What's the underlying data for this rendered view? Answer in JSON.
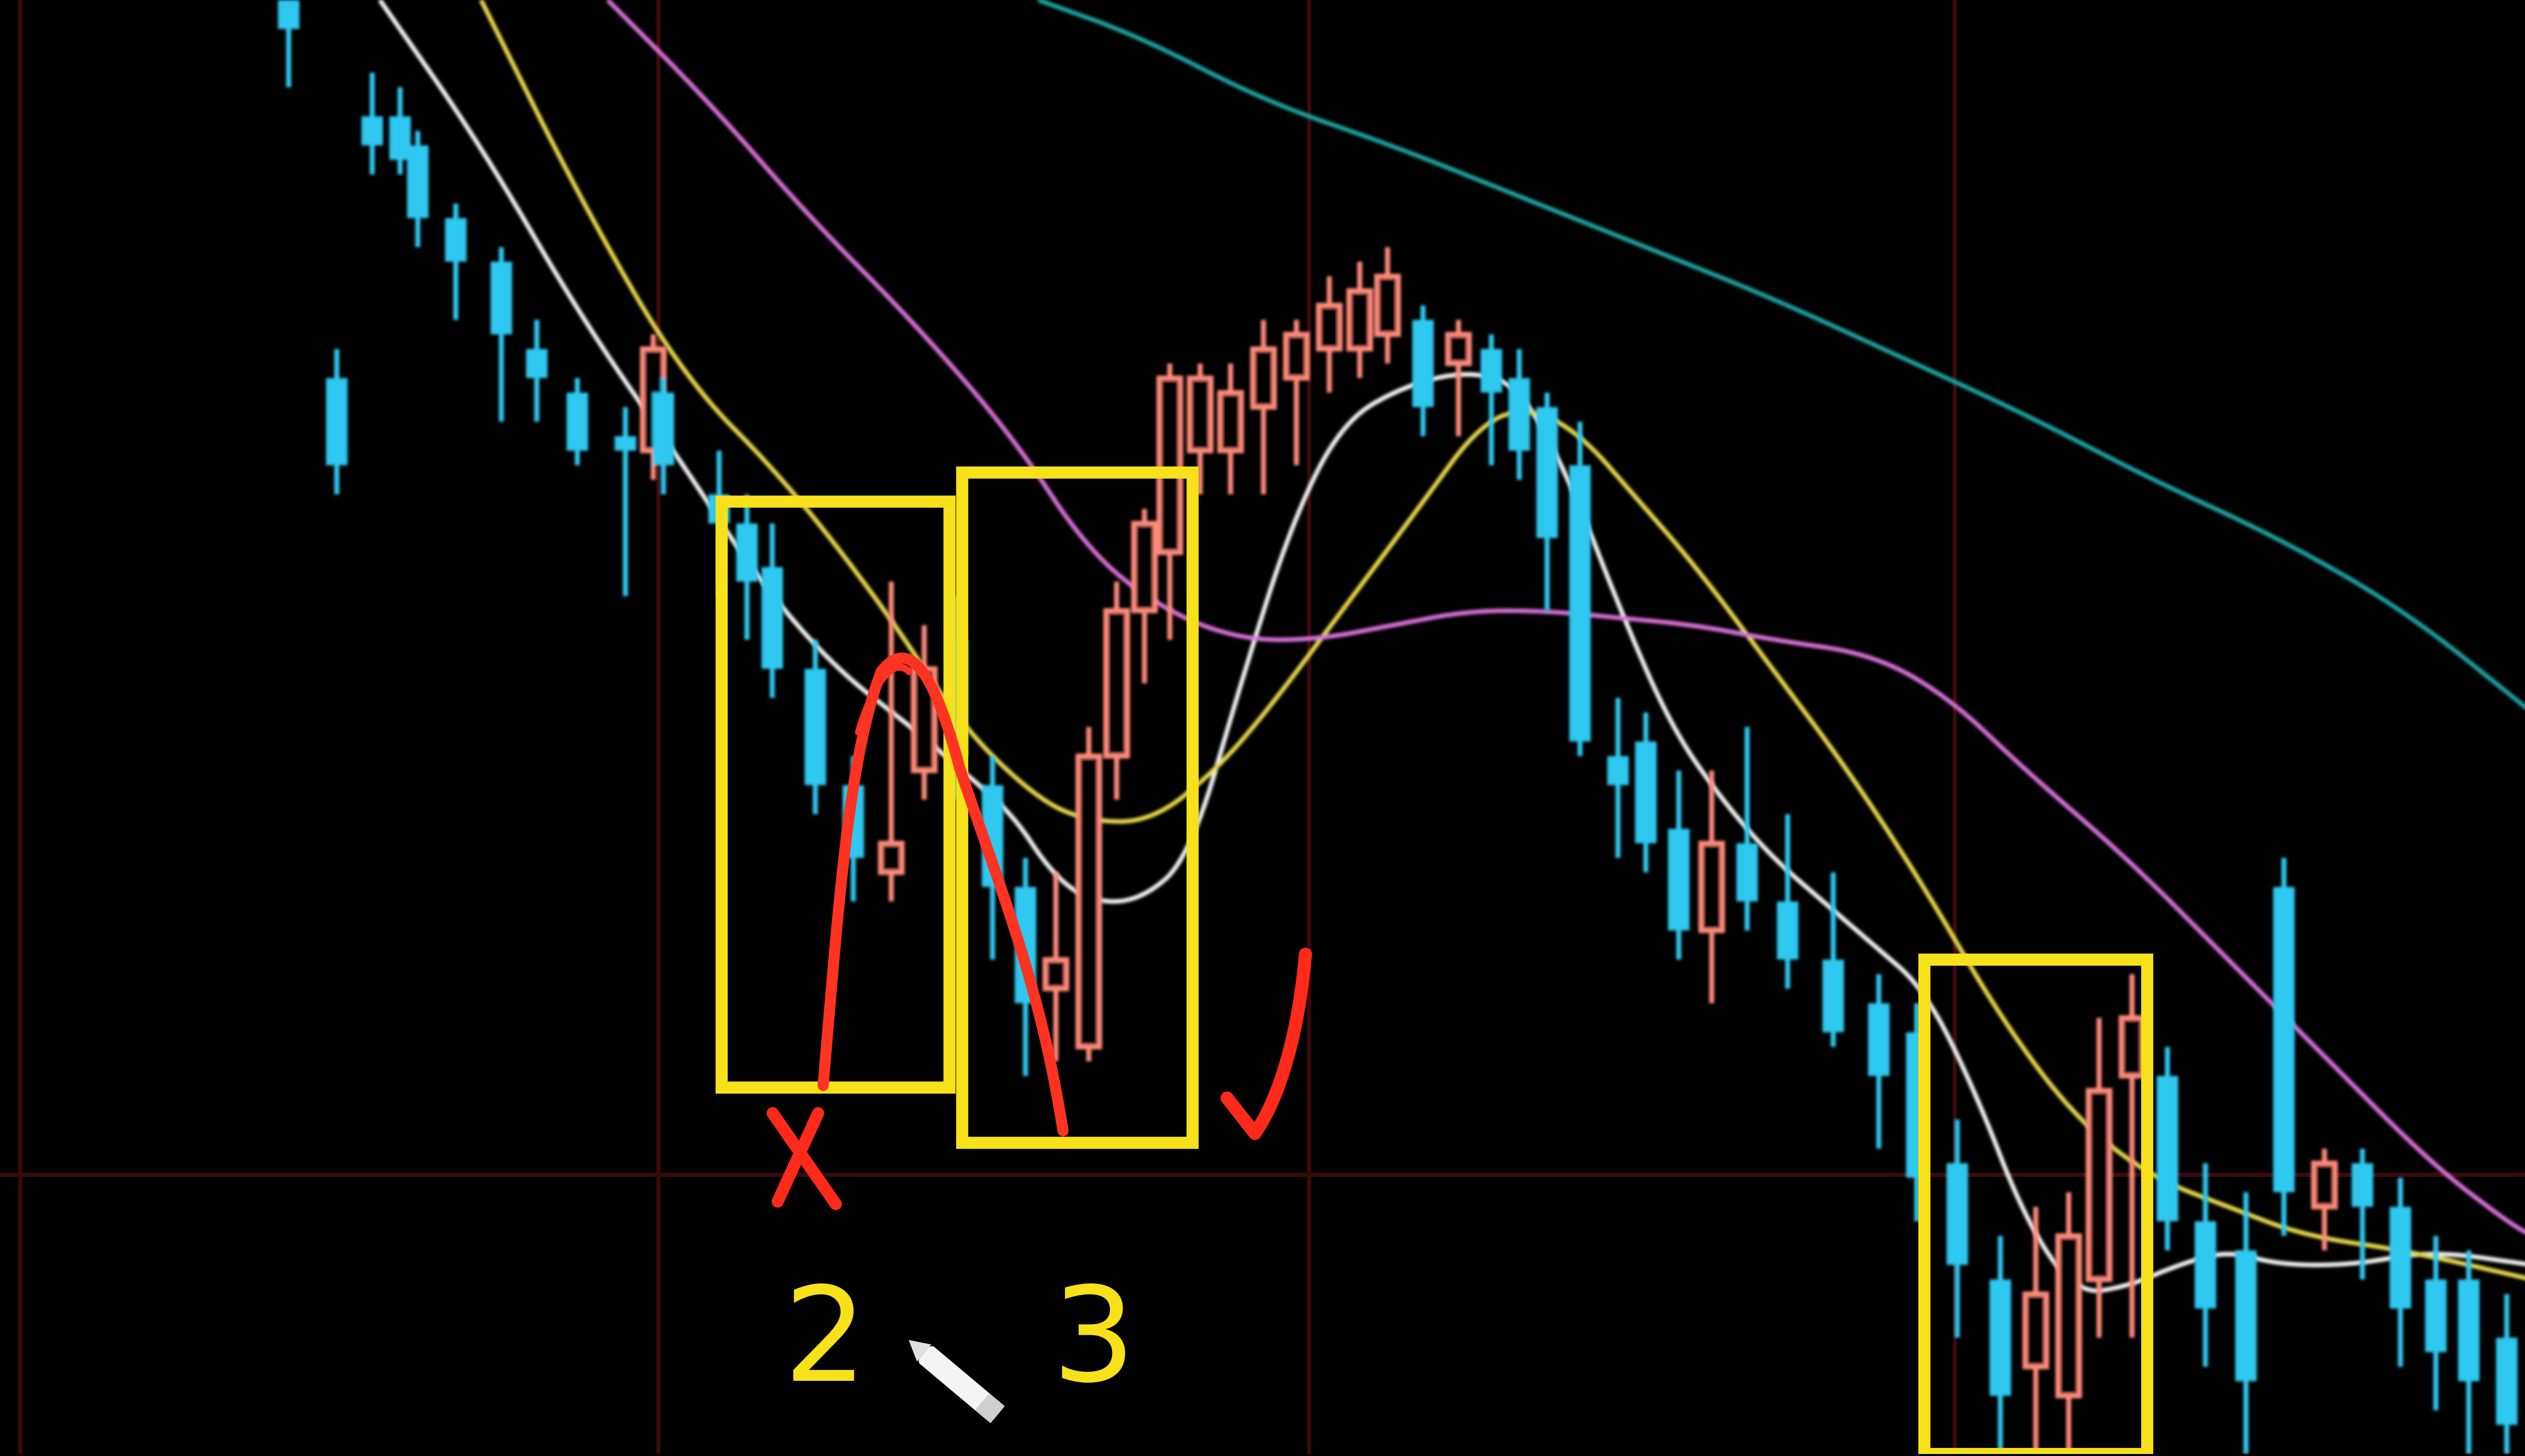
{
  "chart_data": {
    "type": "candlestick",
    "background": "#000000",
    "price_scale": {
      "top": 1.0,
      "bottom": 0.0
    },
    "grid": {
      "color": "#3a0a0a",
      "vertical_x": [
        0.008,
        0.26,
        0.517,
        0.772
      ],
      "horizontal_y": [
        0.808
      ]
    },
    "colors": {
      "up": "#ff8a7a",
      "down": "#2ec8f0",
      "box": "#f6e11a",
      "annotation": "#ff2a1a",
      "cursor": "#ffffff"
    },
    "moving_averages": [
      {
        "color": "#f2f2f2",
        "points": [
          [
            0.15,
            0.0
          ],
          [
            0.19,
            0.1
          ],
          [
            0.23,
            0.22
          ],
          [
            0.27,
            0.32
          ],
          [
            0.3,
            0.4
          ],
          [
            0.33,
            0.46
          ],
          [
            0.36,
            0.5
          ],
          [
            0.38,
            0.53
          ],
          [
            0.4,
            0.56
          ],
          [
            0.415,
            0.6
          ],
          [
            0.43,
            0.62
          ],
          [
            0.45,
            0.62
          ],
          [
            0.47,
            0.59
          ],
          [
            0.49,
            0.47
          ],
          [
            0.51,
            0.36
          ],
          [
            0.53,
            0.29
          ],
          [
            0.555,
            0.265
          ],
          [
            0.58,
            0.255
          ],
          [
            0.6,
            0.265
          ],
          [
            0.62,
            0.33
          ],
          [
            0.64,
            0.42
          ],
          [
            0.66,
            0.5
          ],
          [
            0.68,
            0.55
          ],
          [
            0.7,
            0.59
          ],
          [
            0.72,
            0.62
          ],
          [
            0.74,
            0.65
          ],
          [
            0.76,
            0.68
          ],
          [
            0.78,
            0.75
          ],
          [
            0.8,
            0.84
          ],
          [
            0.82,
            0.89
          ],
          [
            0.84,
            0.885
          ],
          [
            0.86,
            0.87
          ],
          [
            0.88,
            0.86
          ],
          [
            0.9,
            0.87
          ],
          [
            0.93,
            0.87
          ],
          [
            0.96,
            0.86
          ],
          [
            1.0,
            0.87
          ]
        ]
      },
      {
        "color": "#e8d84a",
        "points": [
          [
            0.19,
            0.0
          ],
          [
            0.23,
            0.14
          ],
          [
            0.27,
            0.26
          ],
          [
            0.31,
            0.33
          ],
          [
            0.35,
            0.42
          ],
          [
            0.38,
            0.5
          ],
          [
            0.41,
            0.55
          ],
          [
            0.43,
            0.565
          ],
          [
            0.455,
            0.565
          ],
          [
            0.48,
            0.53
          ],
          [
            0.5,
            0.49
          ],
          [
            0.53,
            0.42
          ],
          [
            0.56,
            0.35
          ],
          [
            0.585,
            0.29
          ],
          [
            0.605,
            0.28
          ],
          [
            0.625,
            0.3
          ],
          [
            0.645,
            0.34
          ],
          [
            0.67,
            0.39
          ],
          [
            0.7,
            0.46
          ],
          [
            0.73,
            0.53
          ],
          [
            0.76,
            0.61
          ],
          [
            0.79,
            0.7
          ],
          [
            0.82,
            0.77
          ],
          [
            0.85,
            0.81
          ],
          [
            0.88,
            0.83
          ],
          [
            0.91,
            0.85
          ],
          [
            0.95,
            0.86
          ],
          [
            1.0,
            0.88
          ]
        ]
      },
      {
        "color": "#d86fd8",
        "points": [
          [
            0.24,
            0.0
          ],
          [
            0.28,
            0.07
          ],
          [
            0.32,
            0.15
          ],
          [
            0.36,
            0.22
          ],
          [
            0.4,
            0.3
          ],
          [
            0.43,
            0.38
          ],
          [
            0.46,
            0.42
          ],
          [
            0.49,
            0.44
          ],
          [
            0.52,
            0.44
          ],
          [
            0.55,
            0.43
          ],
          [
            0.58,
            0.42
          ],
          [
            0.61,
            0.42
          ],
          [
            0.64,
            0.425
          ],
          [
            0.67,
            0.43
          ],
          [
            0.7,
            0.44
          ],
          [
            0.74,
            0.45
          ],
          [
            0.77,
            0.48
          ],
          [
            0.8,
            0.53
          ],
          [
            0.84,
            0.59
          ],
          [
            0.88,
            0.66
          ],
          [
            0.92,
            0.73
          ],
          [
            0.96,
            0.8
          ],
          [
            0.99,
            0.84
          ],
          [
            1.0,
            0.85
          ]
        ]
      },
      {
        "color": "#1fa0a0",
        "points": [
          [
            0.41,
            0.0
          ],
          [
            0.45,
            0.025
          ],
          [
            0.5,
            0.07
          ],
          [
            0.55,
            0.1
          ],
          [
            0.6,
            0.135
          ],
          [
            0.65,
            0.17
          ],
          [
            0.7,
            0.205
          ],
          [
            0.75,
            0.245
          ],
          [
            0.8,
            0.285
          ],
          [
            0.85,
            0.33
          ],
          [
            0.9,
            0.37
          ],
          [
            0.95,
            0.42
          ],
          [
            1.0,
            0.49
          ]
        ]
      }
    ],
    "boxes": [
      {
        "x0": 0.285,
        "y0": 0.345,
        "x1": 0.375,
        "y1": 0.748
      },
      {
        "x0": 0.38,
        "y0": 0.325,
        "x1": 0.471,
        "y1": 0.786
      },
      {
        "x0": 0.76,
        "y0": 0.66,
        "x1": 0.848,
        "y1": 1.0
      }
    ],
    "labels": [
      {
        "text": "2",
        "x": 0.326,
        "y": 0.925,
        "color": "#f6e11a"
      },
      {
        "text": "3",
        "x": 0.432,
        "y": 0.925,
        "color": "#f6e11a"
      }
    ]
  }
}
